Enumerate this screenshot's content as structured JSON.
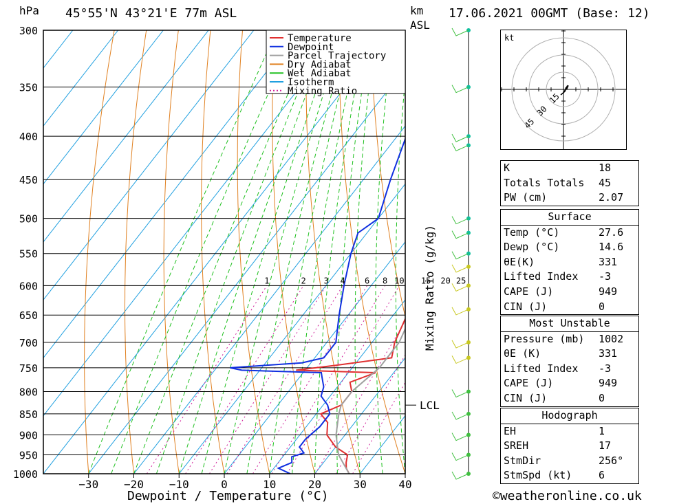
{
  "header": {
    "location": "45°55'N  43°21'E  77m  ASL",
    "date": "17.06.2021  00GMT  (Base: 12)",
    "left_unit": "hPa",
    "right_unit_km": "km",
    "right_unit_asl": "ASL"
  },
  "legend": [
    "Temperature",
    "Dewpoint",
    "Parcel Trajectory",
    "Dry Adiabat",
    "Wet Adiabat",
    "Isotherm",
    "Mixing Ratio"
  ],
  "colors": {
    "temperature": "#e03030",
    "dewpoint": "#1030e0",
    "parcel": "#a0a0a0",
    "dry_adiabat": "#e08020",
    "wet_adiabat": "#20c020",
    "isotherm": "#20a0e0",
    "mixing_ratio": "#d0209a",
    "wind": "#40c040"
  },
  "chart_data": {
    "type": "line",
    "title": "",
    "xlabel": "Dewpoint / Temperature (°C)",
    "ylabel": "",
    "mixing_ratio_label": "Mixing Ratio (g/kg)",
    "xlim": [
      -40,
      40
    ],
    "pressure_levels": [
      300,
      350,
      400,
      450,
      500,
      550,
      600,
      650,
      700,
      750,
      800,
      850,
      900,
      950,
      1000
    ],
    "x_ticks": [
      -30,
      -20,
      -10,
      0,
      10,
      20,
      30,
      40
    ],
    "mixing_ratio_values": [
      "1",
      "2",
      "3",
      "4",
      "6",
      "8",
      "10",
      "15",
      "20",
      "25"
    ],
    "lcl_label": "LCL",
    "lcl_pressure": 830,
    "series": [
      {
        "name": "Temperature",
        "points": [
          [
            1000,
            27.6
          ],
          [
            985,
            26
          ],
          [
            970,
            25
          ],
          [
            950,
            24
          ],
          [
            930,
            20
          ],
          [
            900,
            16
          ],
          [
            870,
            14
          ],
          [
            850,
            11
          ],
          [
            830,
            14
          ],
          [
            800,
            14
          ],
          [
            780,
            12
          ],
          [
            760,
            16
          ],
          [
            755,
            -2
          ],
          [
            745,
            6
          ],
          [
            730,
            17
          ],
          [
            700,
            15
          ],
          [
            650,
            13
          ],
          [
            600,
            10
          ],
          [
            550,
            7
          ],
          [
            520,
            5
          ],
          [
            500,
            4
          ],
          [
            450,
            -1
          ],
          [
            420,
            -5
          ],
          [
            400,
            -8
          ],
          [
            350,
            -17
          ],
          [
            320,
            -22
          ],
          [
            300,
            -24
          ]
        ]
      },
      {
        "name": "Dewpoint",
        "points": [
          [
            1000,
            14.6
          ],
          [
            985,
            11
          ],
          [
            970,
            13
          ],
          [
            955,
            12
          ],
          [
            945,
            14
          ],
          [
            930,
            12
          ],
          [
            910,
            12
          ],
          [
            880,
            13
          ],
          [
            850,
            13
          ],
          [
            830,
            11
          ],
          [
            810,
            8
          ],
          [
            790,
            7
          ],
          [
            770,
            5
          ],
          [
            760,
            4
          ],
          [
            755,
            -14
          ],
          [
            750,
            -17
          ],
          [
            740,
            -2
          ],
          [
            730,
            2
          ],
          [
            700,
            2
          ],
          [
            650,
            -2
          ],
          [
            600,
            -6
          ],
          [
            550,
            -10
          ],
          [
            520,
            -12
          ],
          [
            500,
            -10
          ],
          [
            450,
            -14
          ],
          [
            400,
            -18
          ],
          [
            350,
            -23
          ],
          [
            320,
            -25
          ],
          [
            300,
            -25
          ]
        ]
      },
      {
        "name": "Parcel Trajectory",
        "points": [
          [
            1000,
            27.6
          ],
          [
            950,
            22
          ],
          [
            900,
            18
          ],
          [
            850,
            15
          ],
          [
            830,
            14
          ],
          [
            800,
            14
          ],
          [
            750,
            16
          ],
          [
            700,
            16
          ],
          [
            650,
            14
          ],
          [
            600,
            12
          ],
          [
            550,
            10
          ],
          [
            500,
            7
          ],
          [
            450,
            3
          ],
          [
            400,
            -2
          ],
          [
            350,
            -9
          ],
          [
            320,
            -13
          ],
          [
            300,
            -16
          ]
        ]
      }
    ],
    "wind_profile_pressures": [
      300,
      350,
      400,
      410,
      500,
      520,
      550,
      570,
      600,
      640,
      700,
      730,
      800,
      850,
      900,
      950,
      1000
    ]
  },
  "indices": {
    "rows": [
      {
        "label": "K",
        "value": "18"
      },
      {
        "label": "Totals Totals",
        "value": "45"
      },
      {
        "label": "PW (cm)",
        "value": "2.07"
      }
    ]
  },
  "surface": {
    "title": "Surface",
    "rows": [
      {
        "label": "Temp (°C)",
        "value": "27.6"
      },
      {
        "label": "Dewp (°C)",
        "value": "14.6"
      },
      {
        "label": "θE(K)",
        "value": "331"
      },
      {
        "label": "Lifted Index",
        "value": "-3"
      },
      {
        "label": "CAPE (J)",
        "value": "949"
      },
      {
        "label": "CIN (J)",
        "value": "0"
      }
    ]
  },
  "most_unstable": {
    "title": "Most Unstable",
    "rows": [
      {
        "label": "Pressure (mb)",
        "value": "1002"
      },
      {
        "label": "θE (K)",
        "value": "331"
      },
      {
        "label": "Lifted Index",
        "value": "-3"
      },
      {
        "label": "CAPE (J)",
        "value": "949"
      },
      {
        "label": "CIN (J)",
        "value": "0"
      }
    ]
  },
  "hodograph": {
    "title": "Hodograph",
    "unit": "kt",
    "ring_labels": [
      "15",
      "30",
      "45"
    ],
    "rows": [
      {
        "label": "EH",
        "value": "1"
      },
      {
        "label": "SREH",
        "value": "17"
      },
      {
        "label": "StmDir",
        "value": "256°"
      },
      {
        "label": "StmSpd (kt)",
        "value": "6"
      }
    ]
  },
  "footer": {
    "copyright": "©weatheronline.co.uk"
  }
}
